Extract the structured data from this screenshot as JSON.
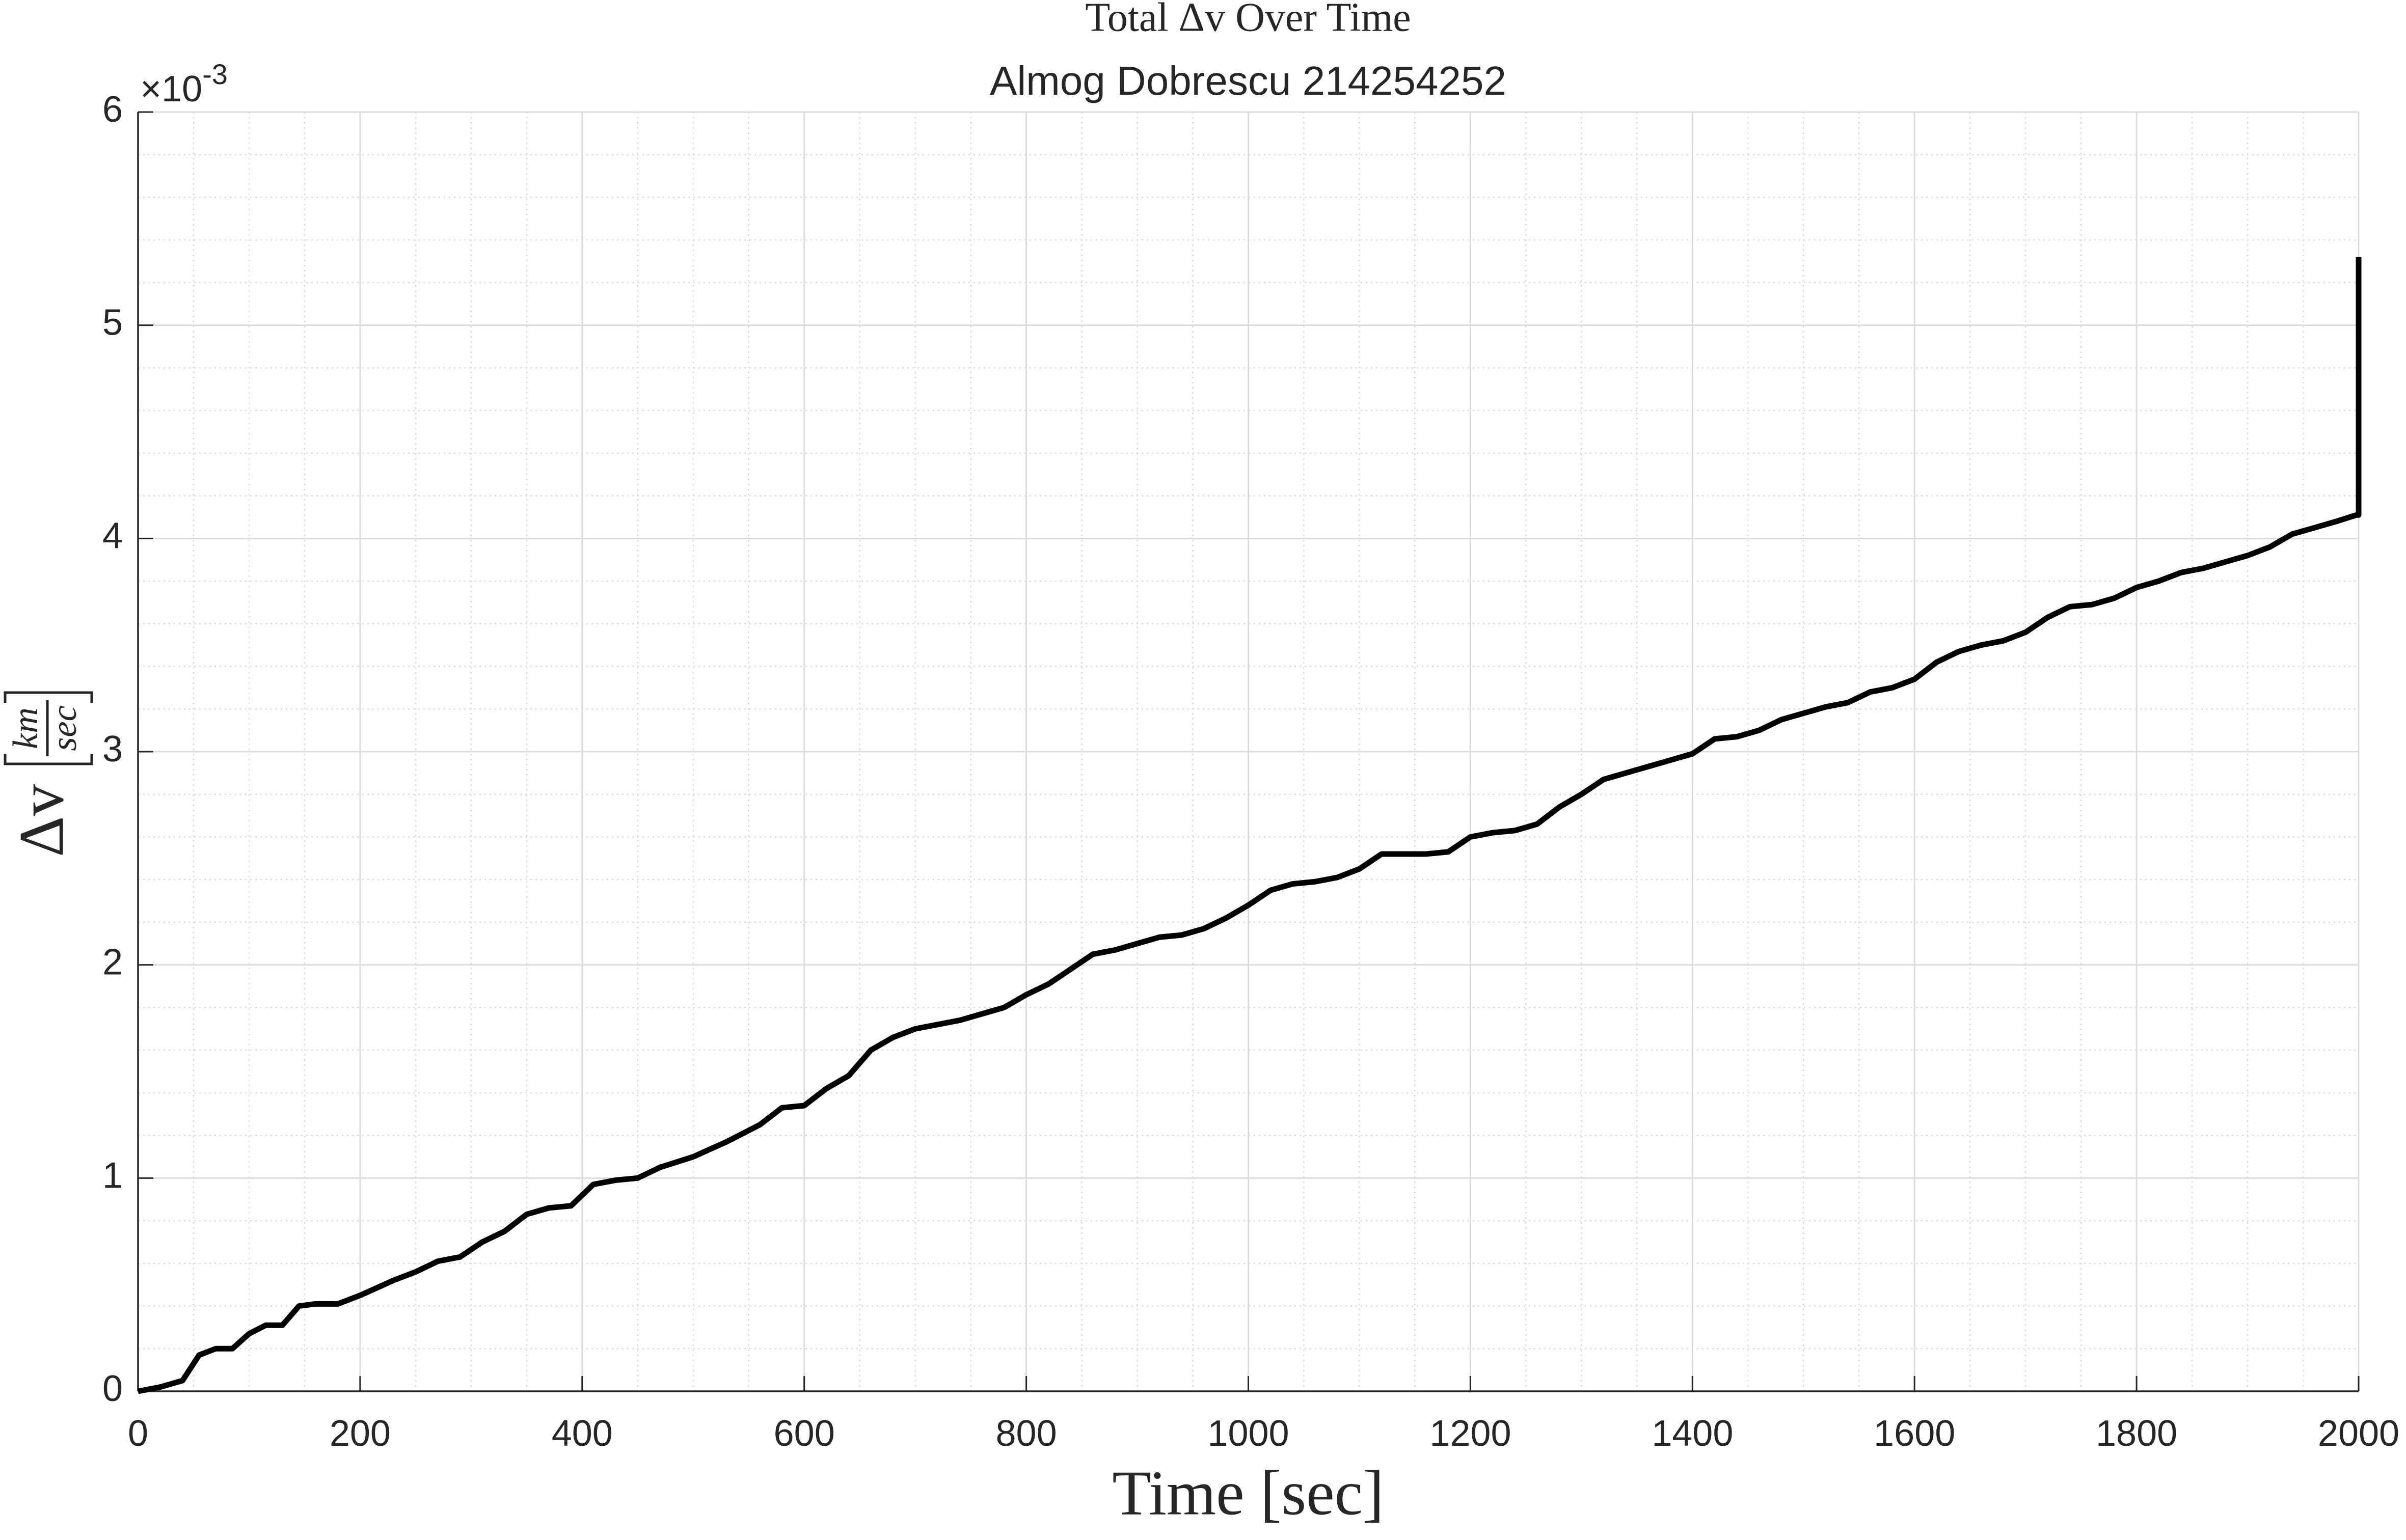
{
  "chart_data": {
    "type": "line",
    "title": "Total Δv Over Time",
    "subtitle": "Almog Dobrescu 214254252",
    "xlabel": "Time [sec]",
    "ylabel": {
      "symbol": "Δv",
      "unit_numerator": "km",
      "unit_denominator": "sec"
    },
    "y_multiplier": {
      "base": "×10",
      "exponent": "-3"
    },
    "x": [
      0,
      20,
      40,
      55,
      70,
      85,
      100,
      115,
      130,
      145,
      160,
      180,
      200,
      230,
      250,
      270,
      290,
      310,
      330,
      350,
      370,
      390,
      410,
      430,
      450,
      470,
      500,
      530,
      560,
      580,
      600,
      620,
      640,
      660,
      680,
      700,
      720,
      740,
      760,
      780,
      800,
      820,
      840,
      860,
      880,
      900,
      920,
      940,
      960,
      980,
      1000,
      1020,
      1040,
      1060,
      1080,
      1100,
      1120,
      1140,
      1160,
      1180,
      1200,
      1220,
      1240,
      1260,
      1280,
      1300,
      1320,
      1340,
      1360,
      1380,
      1400,
      1420,
      1440,
      1460,
      1480,
      1500,
      1520,
      1540,
      1560,
      1580,
      1600,
      1620,
      1640,
      1660,
      1680,
      1700,
      1720,
      1740,
      1760,
      1780,
      1800,
      1820,
      1840,
      1860,
      1880,
      1900,
      1920,
      1940,
      1960,
      1980,
      1998,
      2000,
      2000
    ],
    "series": [
      {
        "name": "Total Δv",
        "color": "#000000",
        "values": [
          0,
          0.02,
          0.05,
          0.17,
          0.2,
          0.2,
          0.27,
          0.31,
          0.31,
          0.4,
          0.41,
          0.41,
          0.45,
          0.52,
          0.56,
          0.61,
          0.63,
          0.7,
          0.75,
          0.83,
          0.86,
          0.87,
          0.97,
          0.99,
          1.0,
          1.05,
          1.1,
          1.17,
          1.25,
          1.33,
          1.34,
          1.42,
          1.48,
          1.6,
          1.66,
          1.7,
          1.72,
          1.74,
          1.77,
          1.8,
          1.86,
          1.91,
          1.98,
          2.05,
          2.07,
          2.1,
          2.13,
          2.14,
          2.17,
          2.22,
          2.28,
          2.35,
          2.38,
          2.39,
          2.41,
          2.45,
          2.52,
          2.52,
          2.52,
          2.53,
          2.6,
          2.62,
          2.63,
          2.66,
          2.74,
          2.8,
          2.87,
          2.9,
          2.93,
          2.96,
          2.99,
          3.06,
          3.07,
          3.1,
          3.15,
          3.18,
          3.21,
          3.23,
          3.28,
          3.3,
          3.34,
          3.42,
          3.47,
          3.5,
          3.52,
          3.56,
          3.63,
          3.68,
          3.69,
          3.72,
          3.77,
          3.8,
          3.84,
          3.86,
          3.89,
          3.92,
          3.96,
          4.02,
          4.05,
          4.08,
          4.11,
          4.11,
          5.32
        ]
      }
    ],
    "xlim": [
      0,
      2000
    ],
    "xticks": [
      0,
      200,
      400,
      600,
      800,
      1000,
      1200,
      1400,
      1600,
      1800,
      2000
    ],
    "ylim": [
      0,
      6
    ],
    "yticks": [
      0,
      1,
      2,
      3,
      4,
      5,
      6
    ],
    "grid": true,
    "minor_grid": true
  }
}
